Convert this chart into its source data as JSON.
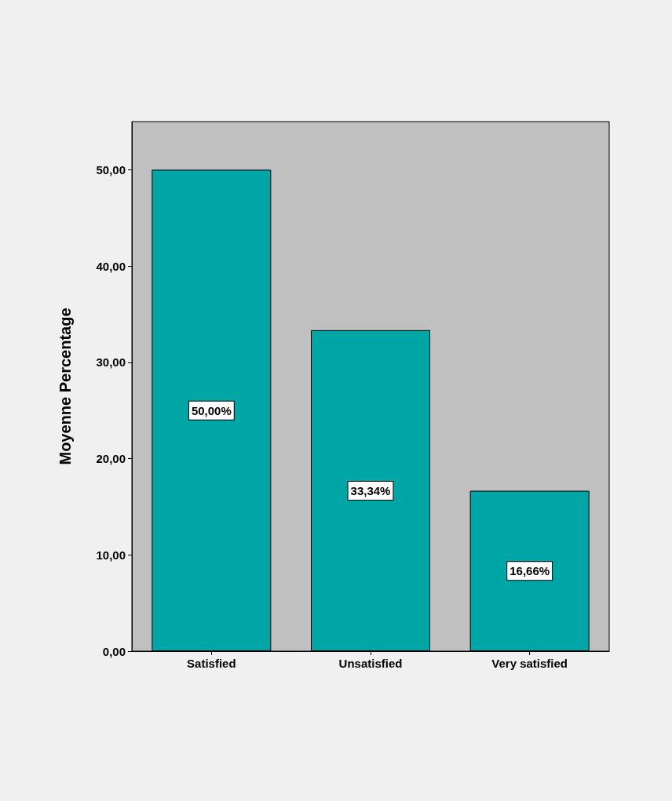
{
  "chart_data": {
    "type": "bar",
    "ylabel": "Moyenne Percentage",
    "categories": [
      "Satisfied",
      "Unsatisfied",
      "Very satisfied"
    ],
    "values": [
      50,
      33.34,
      16.66
    ],
    "value_labels": [
      "50,00%",
      "33,34%",
      "16,66%"
    ],
    "color": "#00a6a6",
    "ylim": [
      0,
      55
    ],
    "yticks": [
      {
        "value": 0,
        "label": "0,00"
      },
      {
        "value": 10,
        "label": "10,00"
      },
      {
        "value": 20,
        "label": "20,00"
      },
      {
        "value": 30,
        "label": "30,00"
      },
      {
        "value": 40,
        "label": "40,00"
      },
      {
        "value": 50,
        "label": "50,00"
      }
    ],
    "grid": false
  }
}
